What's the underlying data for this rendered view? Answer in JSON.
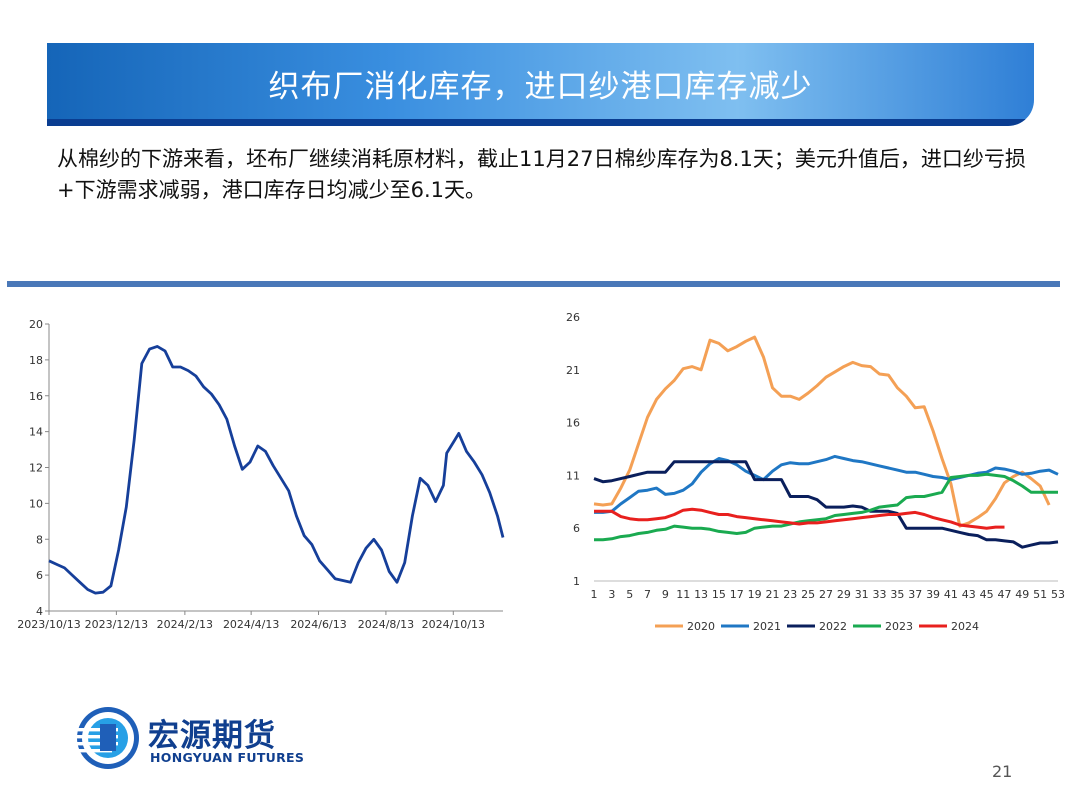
{
  "slide": {
    "title": "织布厂消化库存，进口纱港口库存减少",
    "intro": "从棉纱的下游来看，坯布厂继续消耗原材料，截止11月27日棉纱库存为8.1天；美元升值后，进口纱亏损+下游需求减弱，港口库存日均减少至6.1天。",
    "page_number": "21"
  },
  "logo": {
    "name_cn": "宏源期货",
    "name_en": "HONGYUAN FUTURES",
    "icon": "hongyuan-logo-icon"
  },
  "colors": {
    "title_bar": "#1f6fcc",
    "divider": "#4a78b8",
    "left_line": "#163f9a",
    "2020": "#f4a055",
    "2021": "#1f77c4",
    "2022": "#0a1f5c",
    "2023": "#1aaa50",
    "2024": "#e8201e"
  },
  "chart_data": [
    {
      "type": "line",
      "title": "",
      "xlabel": "",
      "ylabel": "",
      "ylim": [
        4,
        20
      ],
      "yticks": [
        "4",
        "6",
        "8",
        "10",
        "12",
        "14",
        "16",
        "18",
        "20"
      ],
      "xticks": [
        "2023/10/13",
        "2023/12/13",
        "2024/2/13",
        "2024/4/13",
        "2024/6/13",
        "2024/8/13",
        "2024/10/13"
      ],
      "xrange": [
        "2023-10-13",
        "2024-11-27"
      ],
      "grid": false,
      "legend": "none",
      "series": [
        {
          "color": "#163f9a",
          "points": [
            [
              "2023-10-13",
              6.8
            ],
            [
              "2023-10-20",
              6.6
            ],
            [
              "2023-10-27",
              6.4
            ],
            [
              "2023-11-03",
              6.0
            ],
            [
              "2023-11-10",
              5.6
            ],
            [
              "2023-11-17",
              5.2
            ],
            [
              "2023-11-24",
              5.0
            ],
            [
              "2023-12-01",
              5.05
            ],
            [
              "2023-12-08",
              5.4
            ],
            [
              "2023-12-15",
              7.4
            ],
            [
              "2023-12-22",
              9.8
            ],
            [
              "2023-12-29",
              13.5
            ],
            [
              "2024-01-05",
              17.8
            ],
            [
              "2024-01-12",
              18.6
            ],
            [
              "2024-01-19",
              18.75
            ],
            [
              "2024-01-26",
              18.5
            ],
            [
              "2024-02-02",
              17.6
            ],
            [
              "2024-02-09",
              17.6
            ],
            [
              "2024-02-16",
              17.4
            ],
            [
              "2024-02-23",
              17.1
            ],
            [
              "2024-03-01",
              16.5
            ],
            [
              "2024-03-08",
              16.1
            ],
            [
              "2024-03-15",
              15.5
            ],
            [
              "2024-03-22",
              14.7
            ],
            [
              "2024-03-29",
              13.2
            ],
            [
              "2024-04-05",
              11.9
            ],
            [
              "2024-04-12",
              12.3
            ],
            [
              "2024-04-19",
              13.2
            ],
            [
              "2024-04-26",
              12.9
            ],
            [
              "2024-05-03",
              12.1
            ],
            [
              "2024-05-10",
              11.4
            ],
            [
              "2024-05-17",
              10.7
            ],
            [
              "2024-05-24",
              9.3
            ],
            [
              "2024-05-31",
              8.2
            ],
            [
              "2024-06-07",
              7.7
            ],
            [
              "2024-06-14",
              6.8
            ],
            [
              "2024-06-21",
              6.3
            ],
            [
              "2024-06-28",
              5.8
            ],
            [
              "2024-07-05",
              5.7
            ],
            [
              "2024-07-12",
              5.6
            ],
            [
              "2024-07-19",
              6.7
            ],
            [
              "2024-07-26",
              7.5
            ],
            [
              "2024-08-02",
              8.0
            ],
            [
              "2024-08-09",
              7.4
            ],
            [
              "2024-08-16",
              6.2
            ],
            [
              "2024-08-23",
              5.6
            ],
            [
              "2024-08-30",
              6.7
            ],
            [
              "2024-09-06",
              9.3
            ],
            [
              "2024-09-13",
              11.4
            ],
            [
              "2024-09-20",
              11.0
            ],
            [
              "2024-09-27",
              10.1
            ],
            [
              "2024-10-04",
              11.0
            ],
            [
              "2024-10-07",
              12.8
            ],
            [
              "2024-10-14",
              13.5
            ],
            [
              "2024-10-18",
              13.9
            ],
            [
              "2024-10-25",
              12.9
            ],
            [
              "2024-11-01",
              12.3
            ],
            [
              "2024-11-08",
              11.6
            ],
            [
              "2024-11-15",
              10.6
            ],
            [
              "2024-11-22",
              9.3
            ],
            [
              "2024-11-27",
              8.1
            ]
          ]
        }
      ]
    },
    {
      "type": "line",
      "title": "",
      "xlabel": "",
      "ylabel": "",
      "ylim": [
        1,
        26
      ],
      "yticks": [
        "1",
        "6",
        "11",
        "16",
        "21",
        "26"
      ],
      "xticks": [
        "1",
        "3",
        "5",
        "7",
        "9",
        "11",
        "13",
        "15",
        "17",
        "19",
        "21",
        "23",
        "25",
        "27",
        "29",
        "31",
        "33",
        "35",
        "37",
        "39",
        "41",
        "43",
        "45",
        "47",
        "49",
        "51",
        "53"
      ],
      "xrange": [
        1,
        53
      ],
      "grid": false,
      "legend": "bottom",
      "series": [
        {
          "name": "2020",
          "color": "#f4a055",
          "x": [
            1,
            2,
            3,
            4,
            5,
            6,
            7,
            8,
            9,
            10,
            11,
            12,
            13,
            14,
            15,
            16,
            17,
            18,
            19,
            20,
            21,
            22,
            23,
            24,
            25,
            26,
            27,
            28,
            29,
            30,
            31,
            32,
            33,
            34,
            35,
            36,
            37,
            38,
            39,
            40,
            41,
            42,
            43,
            44,
            45,
            46,
            47,
            48,
            49,
            50,
            51,
            52
          ],
          "values": [
            8.3,
            8.2,
            8.3,
            9.8,
            11.5,
            14.0,
            16.5,
            18.2,
            19.2,
            20.0,
            21.1,
            21.3,
            21.0,
            23.8,
            23.5,
            22.8,
            23.2,
            23.7,
            24.1,
            22.2,
            19.3,
            18.5,
            18.5,
            18.2,
            18.8,
            19.5,
            20.3,
            20.8,
            21.3,
            21.7,
            21.4,
            21.3,
            20.6,
            20.5,
            19.3,
            18.5,
            17.4,
            17.5,
            15.2,
            12.6,
            10.2,
            6.2,
            6.5,
            7.0,
            7.6,
            8.8,
            10.3,
            10.9,
            11.3,
            10.7,
            10.0,
            8.2
          ]
        },
        {
          "name": "2021",
          "color": "#1f77c4",
          "x": [
            1,
            2,
            3,
            4,
            5,
            6,
            7,
            8,
            9,
            10,
            11,
            12,
            13,
            14,
            15,
            16,
            17,
            18,
            19,
            20,
            21,
            22,
            23,
            24,
            25,
            26,
            27,
            28,
            29,
            30,
            31,
            32,
            33,
            34,
            35,
            36,
            37,
            38,
            39,
            40,
            41,
            42,
            43,
            44,
            45,
            46,
            47,
            48,
            49,
            50,
            51,
            52,
            53
          ],
          "values": [
            7.5,
            7.5,
            7.6,
            8.3,
            8.9,
            9.5,
            9.6,
            9.8,
            9.2,
            9.3,
            9.6,
            10.2,
            11.3,
            12.1,
            12.6,
            12.4,
            12.0,
            11.4,
            11.0,
            10.6,
            11.4,
            12.0,
            12.2,
            12.1,
            12.1,
            12.3,
            12.5,
            12.8,
            12.6,
            12.4,
            12.3,
            12.1,
            11.9,
            11.7,
            11.5,
            11.3,
            11.3,
            11.1,
            10.9,
            10.8,
            10.6,
            10.8,
            11.0,
            11.2,
            11.3,
            11.7,
            11.6,
            11.4,
            11.1,
            11.2,
            11.4,
            11.5,
            11.1
          ]
        },
        {
          "name": "2022",
          "color": "#0a1f5c",
          "x": [
            1,
            2,
            3,
            4,
            5,
            6,
            7,
            8,
            9,
            10,
            11,
            12,
            13,
            14,
            15,
            16,
            17,
            18,
            19,
            20,
            21,
            22,
            23,
            24,
            25,
            26,
            27,
            28,
            29,
            30,
            31,
            32,
            33,
            34,
            35,
            36,
            37,
            38,
            39,
            40,
            41,
            42,
            43,
            44,
            45,
            46,
            47,
            48,
            49,
            50,
            51,
            52,
            53
          ],
          "values": [
            10.7,
            10.4,
            10.5,
            10.7,
            10.9,
            11.1,
            11.3,
            11.3,
            11.3,
            12.3,
            12.3,
            12.3,
            12.3,
            12.3,
            12.3,
            12.3,
            12.3,
            12.3,
            10.6,
            10.6,
            10.6,
            10.6,
            9.0,
            9.0,
            9.0,
            8.7,
            8.0,
            8.0,
            8.0,
            8.1,
            8.0,
            7.6,
            7.6,
            7.6,
            7.4,
            6.0,
            6.0,
            6.0,
            6.0,
            6.0,
            5.8,
            5.6,
            5.4,
            5.3,
            4.9,
            4.9,
            4.8,
            4.7,
            4.2,
            4.4,
            4.6,
            4.6,
            4.7
          ]
        },
        {
          "name": "2023",
          "color": "#1aaa50",
          "x": [
            1,
            2,
            3,
            4,
            5,
            6,
            7,
            8,
            9,
            10,
            11,
            12,
            13,
            14,
            15,
            16,
            17,
            18,
            19,
            20,
            21,
            22,
            23,
            24,
            25,
            26,
            27,
            28,
            29,
            30,
            31,
            32,
            33,
            34,
            35,
            36,
            37,
            38,
            39,
            40,
            41,
            42,
            43,
            44,
            45,
            46,
            47,
            48,
            49,
            50,
            51,
            52,
            53
          ],
          "values": [
            4.9,
            4.9,
            5.0,
            5.2,
            5.3,
            5.5,
            5.6,
            5.8,
            5.9,
            6.2,
            6.1,
            6.0,
            6.0,
            5.9,
            5.7,
            5.6,
            5.5,
            5.6,
            6.0,
            6.1,
            6.2,
            6.2,
            6.4,
            6.6,
            6.7,
            6.8,
            6.9,
            7.2,
            7.3,
            7.4,
            7.5,
            7.7,
            8.0,
            8.1,
            8.2,
            8.9,
            9.0,
            9.0,
            9.2,
            9.4,
            10.8,
            10.9,
            11.0,
            11.0,
            11.1,
            11.0,
            10.9,
            10.5,
            10.0,
            9.4,
            9.4,
            9.4,
            9.4
          ]
        },
        {
          "name": "2024",
          "color": "#e8201e",
          "x": [
            1,
            2,
            3,
            4,
            5,
            6,
            7,
            8,
            9,
            10,
            11,
            12,
            13,
            14,
            15,
            16,
            17,
            18,
            19,
            20,
            21,
            22,
            23,
            24,
            25,
            26,
            27,
            28,
            29,
            30,
            31,
            32,
            33,
            34,
            35,
            36,
            37,
            38,
            39,
            40,
            41,
            42,
            43,
            44,
            45,
            46,
            47
          ],
          "values": [
            7.6,
            7.6,
            7.6,
            7.1,
            6.9,
            6.8,
            6.8,
            6.9,
            7.0,
            7.3,
            7.7,
            7.8,
            7.7,
            7.5,
            7.3,
            7.3,
            7.1,
            7.0,
            6.9,
            6.8,
            6.7,
            6.6,
            6.5,
            6.4,
            6.5,
            6.5,
            6.6,
            6.7,
            6.8,
            6.9,
            7.0,
            7.1,
            7.2,
            7.3,
            7.3,
            7.4,
            7.5,
            7.3,
            7.0,
            6.8,
            6.6,
            6.3,
            6.2,
            6.1,
            6.0,
            6.1,
            6.1
          ]
        }
      ]
    }
  ]
}
